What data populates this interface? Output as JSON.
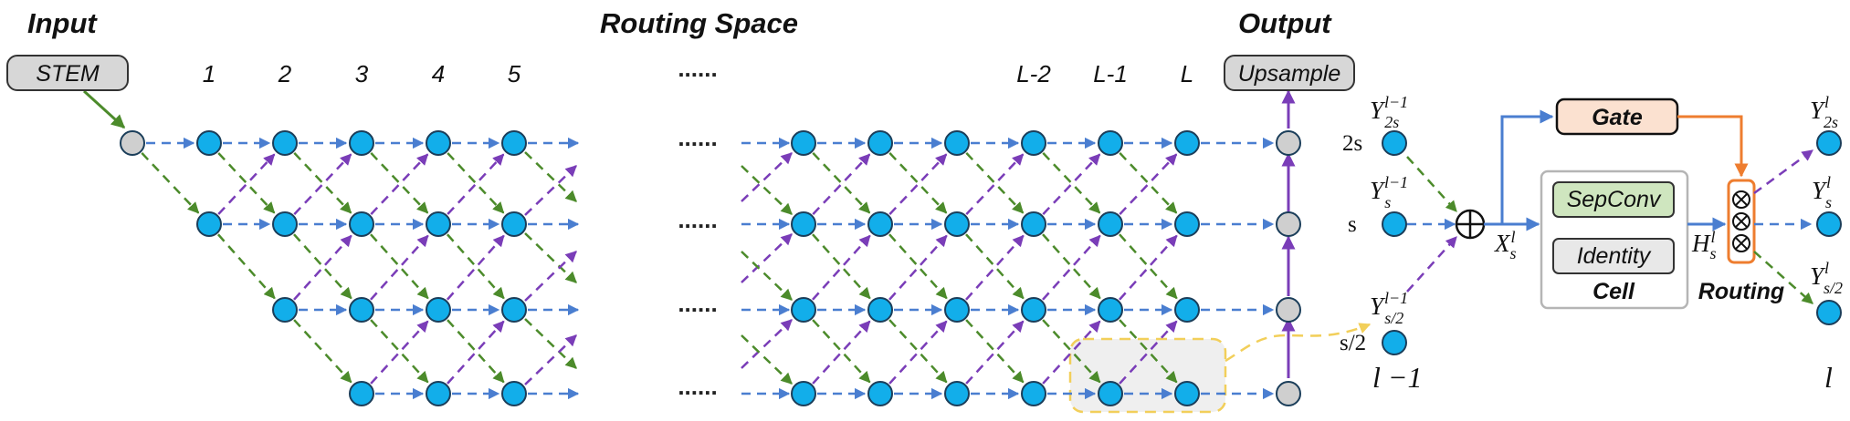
{
  "headers": {
    "input": "Input",
    "routing_space": "Routing Space",
    "output": "Output"
  },
  "boxes": {
    "stem": "STEM",
    "upsample": "Upsample",
    "gate": "Gate",
    "sepconv": "SepConv",
    "identity": "Identity",
    "cell": "Cell",
    "routing": "Routing"
  },
  "layer_labels": [
    "1",
    "2",
    "3",
    "4",
    "5",
    "L-2",
    "L-1",
    "L"
  ],
  "ellipsis": "......",
  "scale_labels": [
    "2s",
    "s",
    "s/2"
  ],
  "math": {
    "Y": "Y",
    "X": "X",
    "H": "H",
    "prev_sup": "l−1",
    "cur_sup": "l",
    "sub_2s": "2s",
    "sub_s": "s",
    "sub_s2": "s/2",
    "prev_layer": "l −1",
    "cur_layer": "l"
  },
  "colors": {
    "node_fill": "#12aeea",
    "node_stroke": "#1b3e5a",
    "grey_node": "#cfcfcf",
    "blue_arrow": "#4a7ed0",
    "green_arrow": "#4c8b2b",
    "purple_arrow": "#7a3db8",
    "orange": "#ee7d2f",
    "gate_fill": "#fbe1d0",
    "sepconv_fill": "#cfe6bf",
    "highlight": "#f5d76e"
  }
}
